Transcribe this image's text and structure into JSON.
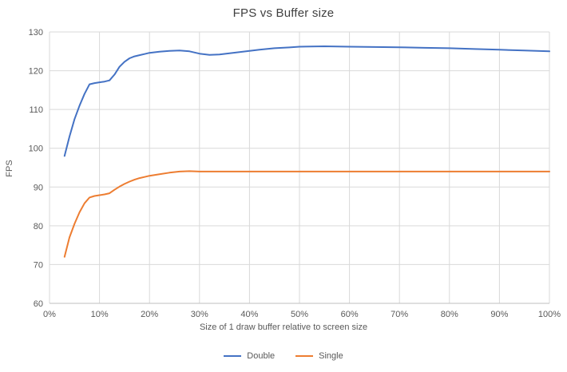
{
  "chart_data": {
    "type": "line",
    "title": "FPS vs Buffer size",
    "xlabel": "Size of 1 draw buffer relative to screen size",
    "ylabel": "FPS",
    "xlim": [
      0,
      100
    ],
    "ylim": [
      60,
      130
    ],
    "x_tick_values": [
      0,
      10,
      20,
      30,
      40,
      50,
      60,
      70,
      80,
      90,
      100
    ],
    "x_tick_labels": [
      "0%",
      "10%",
      "20%",
      "30%",
      "40%",
      "50%",
      "60%",
      "70%",
      "80%",
      "90%",
      "100%"
    ],
    "y_tick_values": [
      60,
      70,
      80,
      90,
      100,
      110,
      120,
      130
    ],
    "grid": true,
    "legend_position": "bottom",
    "colors": {
      "grid_line": "#d9d9d9",
      "axis_line": "#bfbfbf",
      "tick_text": "#595959",
      "title_text": "#404040",
      "background": "#ffffff"
    },
    "series": [
      {
        "name": "Double",
        "color": "#4472c4",
        "x": [
          3,
          4,
          5,
          6,
          7,
          8,
          9,
          10,
          11,
          12,
          13,
          14,
          15,
          16,
          17,
          18,
          19,
          20,
          22,
          24,
          26,
          28,
          30,
          32,
          34,
          36,
          38,
          40,
          42,
          45,
          48,
          50,
          55,
          60,
          65,
          70,
          75,
          80,
          85,
          90,
          95,
          100
        ],
        "y": [
          98,
          103,
          107.5,
          111,
          114,
          116.5,
          116.8,
          117,
          117.2,
          117.5,
          119,
          121,
          122.3,
          123.2,
          123.7,
          124,
          124.3,
          124.6,
          124.9,
          125.1,
          125.2,
          125,
          124.4,
          124.1,
          124.2,
          124.5,
          124.8,
          125.1,
          125.4,
          125.8,
          126,
          126.2,
          126.3,
          126.2,
          126.1,
          126.05,
          125.9,
          125.8,
          125.6,
          125.4,
          125.2,
          125
        ]
      },
      {
        "name": "Single",
        "color": "#ed7d31",
        "x": [
          3,
          4,
          5,
          6,
          7,
          8,
          9,
          10,
          11,
          12,
          13,
          14,
          15,
          16,
          17,
          18,
          19,
          20,
          22,
          24,
          26,
          28,
          30,
          32,
          35,
          40,
          45,
          50,
          55,
          60,
          65,
          70,
          75,
          80,
          85,
          90,
          95,
          100
        ],
        "y": [
          72,
          77,
          80.5,
          83.5,
          85.8,
          87.3,
          87.7,
          87.9,
          88.1,
          88.4,
          89.3,
          90.1,
          90.8,
          91.4,
          91.9,
          92.3,
          92.6,
          92.9,
          93.3,
          93.7,
          94,
          94.1,
          94,
          94,
          94,
          94,
          94,
          94,
          94,
          94,
          94,
          94,
          94,
          94,
          94,
          94,
          94,
          94
        ]
      }
    ]
  }
}
